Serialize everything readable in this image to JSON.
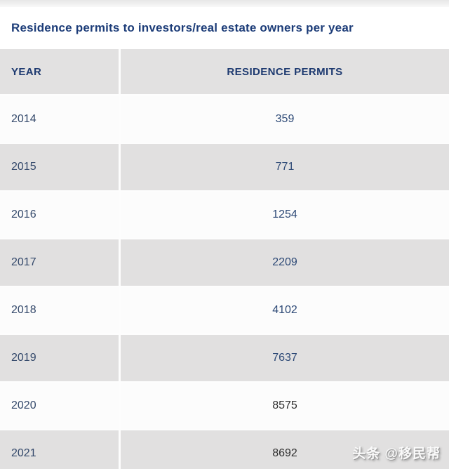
{
  "header": {
    "title": "Residence permits to investors/real estate owners per year"
  },
  "table": {
    "columns": [
      "YEAR",
      "RESIDENCE PERMITS"
    ],
    "rows": [
      {
        "year": "2014",
        "permits": "359"
      },
      {
        "year": "2015",
        "permits": "771"
      },
      {
        "year": "2016",
        "permits": "1254"
      },
      {
        "year": "2017",
        "permits": "2209"
      },
      {
        "year": "2018",
        "permits": "4102"
      },
      {
        "year": "2019",
        "permits": "7637"
      },
      {
        "year": "2020",
        "permits": "8575"
      },
      {
        "year": "2021",
        "permits": "8692"
      }
    ]
  },
  "watermark": {
    "text": "头条 @移民帮"
  },
  "colors": {
    "title_navy": "#1c3c78",
    "header_navy": "#1e3a70",
    "year_navy": "#34496b",
    "value_navy": "#2d4976",
    "value_dark": "#2f2f2f",
    "row_gray": "#e1e0e0",
    "row_white": "#fcfcfc",
    "divider_white": "#fdfdfd"
  },
  "chart_data": {
    "type": "table",
    "title": "Residence permits to investors/real estate owners per year",
    "columns": [
      "YEAR",
      "RESIDENCE PERMITS"
    ],
    "categories": [
      "2014",
      "2015",
      "2016",
      "2017",
      "2018",
      "2019",
      "2020",
      "2021"
    ],
    "values": [
      359,
      771,
      1254,
      2209,
      4102,
      7637,
      8575,
      8692
    ]
  }
}
